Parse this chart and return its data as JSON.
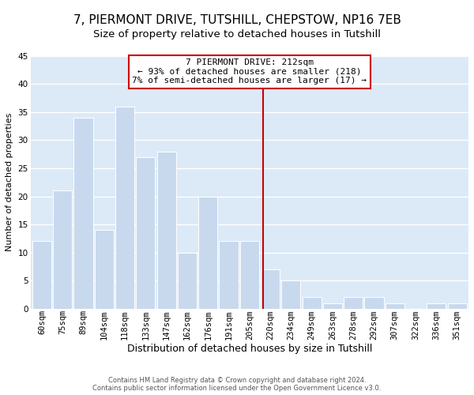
{
  "title": "7, PIERMONT DRIVE, TUTSHILL, CHEPSTOW, NP16 7EB",
  "subtitle": "Size of property relative to detached houses in Tutshill",
  "xlabel": "Distribution of detached houses by size in Tutshill",
  "ylabel": "Number of detached properties",
  "bar_labels": [
    "60sqm",
    "75sqm",
    "89sqm",
    "104sqm",
    "118sqm",
    "133sqm",
    "147sqm",
    "162sqm",
    "176sqm",
    "191sqm",
    "205sqm",
    "220sqm",
    "234sqm",
    "249sqm",
    "263sqm",
    "278sqm",
    "292sqm",
    "307sqm",
    "322sqm",
    "336sqm",
    "351sqm"
  ],
  "bar_values": [
    12,
    21,
    34,
    14,
    36,
    27,
    28,
    10,
    20,
    12,
    12,
    7,
    5,
    2,
    1,
    2,
    2,
    1,
    0,
    1,
    1
  ],
  "bar_color": "#c8d9ee",
  "bar_edge_color": "#ffffff",
  "grid_color": "#ffffff",
  "plot_bg_color": "#dce9f7",
  "fig_bg_color": "#ffffff",
  "vline_x": 10.67,
  "vline_color": "#cc0000",
  "annotation_title": "7 PIERMONT DRIVE: 212sqm",
  "annotation_line1": "← 93% of detached houses are smaller (218)",
  "annotation_line2": "7% of semi-detached houses are larger (17) →",
  "annotation_box_color": "#ffffff",
  "annotation_box_edge": "#cc0000",
  "footnote1": "Contains HM Land Registry data © Crown copyright and database right 2024.",
  "footnote2": "Contains public sector information licensed under the Open Government Licence v3.0.",
  "ylim": [
    0,
    45
  ],
  "yticks": [
    0,
    5,
    10,
    15,
    20,
    25,
    30,
    35,
    40,
    45
  ],
  "title_fontsize": 11,
  "subtitle_fontsize": 9.5,
  "xlabel_fontsize": 9,
  "ylabel_fontsize": 8,
  "tick_fontsize": 7.5,
  "ann_fontsize": 8,
  "footnote_fontsize": 6
}
